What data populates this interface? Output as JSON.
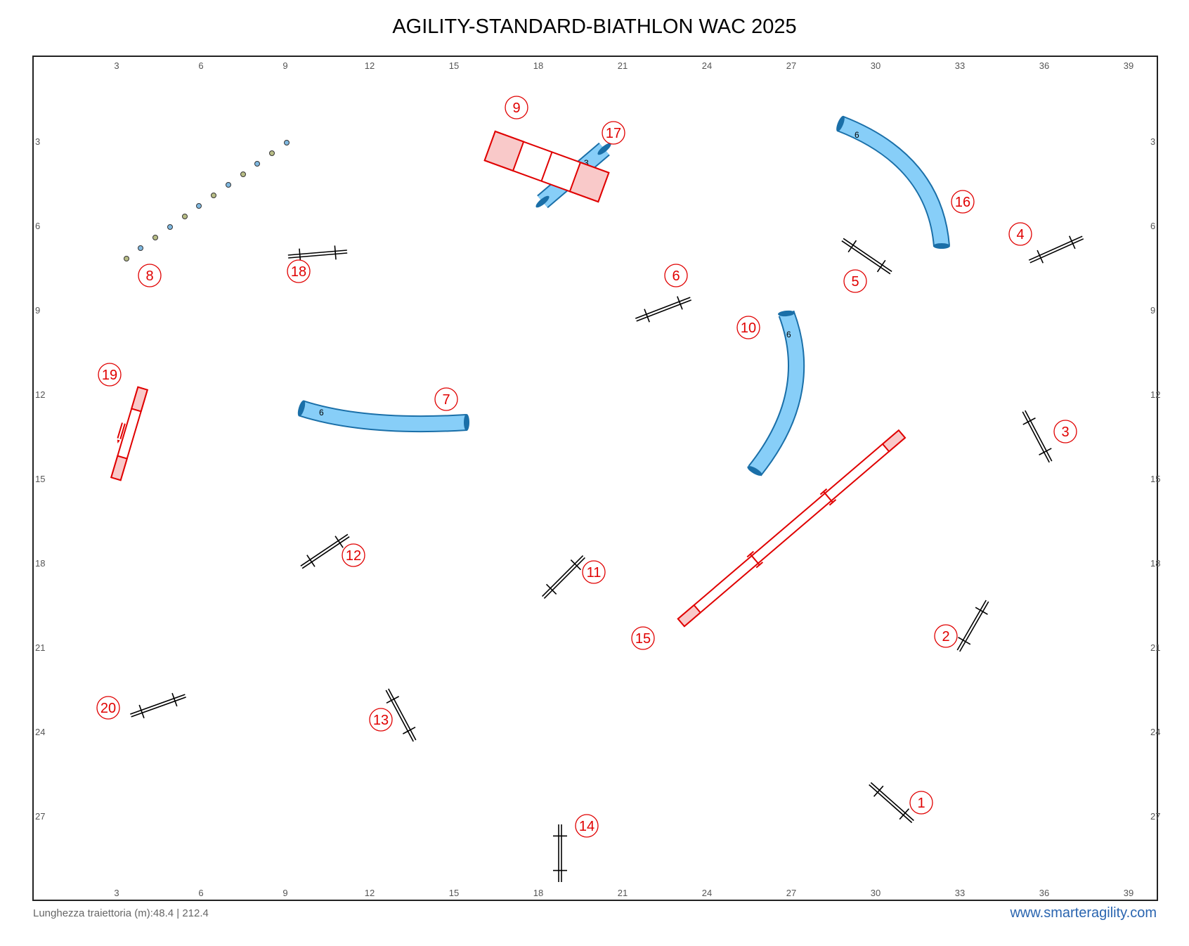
{
  "title": "AGILITY-STANDARD-BIATHLON WAC 2025",
  "footer": {
    "path_length": "Lunghezza traiettoria (m):48.4 | 212.4",
    "website": "www.smarteragility.com"
  },
  "ring": {
    "x_ticks": [
      "3",
      "6",
      "9",
      "12",
      "15",
      "18",
      "21",
      "24",
      "27",
      "30",
      "33",
      "36",
      "39"
    ],
    "y_ticks": [
      "3",
      "6",
      "9",
      "12",
      "15",
      "18",
      "21",
      "24",
      "27"
    ]
  },
  "colors": {
    "number": "#e00000",
    "tunnel_fill": "#87cef8",
    "tunnel_stroke": "#1a6fa8",
    "contact_stroke": "#e00000",
    "contact_zone": "#f9c9c9",
    "jump": "#000000"
  },
  "obstacles": {
    "jumps": [
      {
        "number": "1",
        "type": "jump"
      },
      {
        "number": "2",
        "type": "jump"
      },
      {
        "number": "3",
        "type": "jump"
      },
      {
        "number": "4",
        "type": "jump"
      },
      {
        "number": "5",
        "type": "jump"
      },
      {
        "number": "6",
        "type": "jump"
      },
      {
        "number": "11",
        "type": "jump"
      },
      {
        "number": "12",
        "type": "jump"
      },
      {
        "number": "13",
        "type": "jump"
      },
      {
        "number": "14",
        "type": "jump"
      },
      {
        "number": "18",
        "type": "jump"
      },
      {
        "number": "20",
        "type": "jump"
      }
    ],
    "tunnels": [
      {
        "number": "7",
        "length_label": "6"
      },
      {
        "number": "10",
        "length_label": "6"
      },
      {
        "number": "16",
        "length_label": "6"
      },
      {
        "number": "17",
        "length_label": "3"
      }
    ],
    "weave_poles": {
      "number": "8"
    },
    "a_frame": {
      "number": "9"
    },
    "dog_walk": {
      "number": "15"
    },
    "seesaw": {
      "number": "19"
    }
  }
}
